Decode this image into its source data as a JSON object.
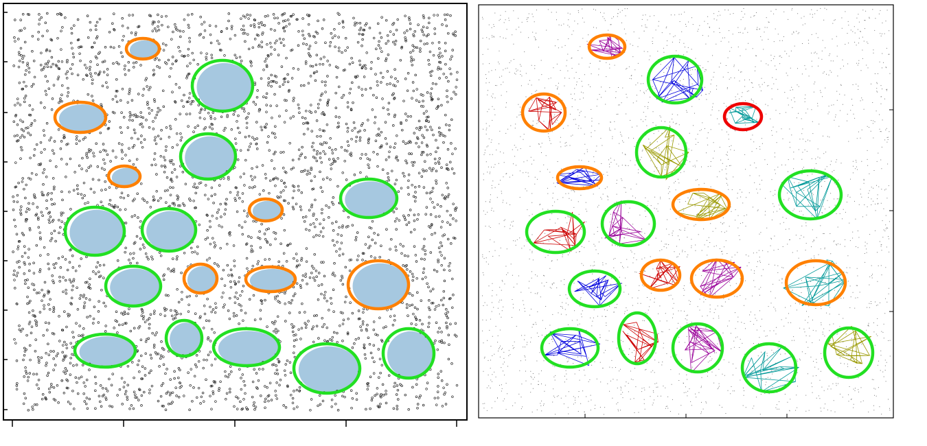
{
  "chart_data": [
    {
      "type": "ellipse-map",
      "xlim": [
        0,
        675
      ],
      "ylim": [
        607,
        0
      ],
      "xticks": [
        13,
        175,
        337,
        499,
        660
      ],
      "yticks": [
        15,
        88,
        160,
        232,
        304,
        376,
        448,
        522,
        594
      ],
      "ellipses": [
        {
          "x": 148,
          "y": 101,
          "rx": 44,
          "ry": 24,
          "color": "#22e022"
        },
        {
          "x": 263,
          "y": 119,
          "rx": 26,
          "ry": 26,
          "color": "#22e022"
        },
        {
          "x": 354,
          "y": 106,
          "rx": 48,
          "ry": 27,
          "color": "#22e022"
        },
        {
          "x": 471,
          "y": 75,
          "rx": 48,
          "ry": 36,
          "color": "#22e022"
        },
        {
          "x": 590,
          "y": 97,
          "rx": 37,
          "ry": 36,
          "color": "#22e022"
        },
        {
          "x": 189,
          "y": 195,
          "rx": 40,
          "ry": 29,
          "color": "#22e022"
        },
        {
          "x": 133,
          "y": 275,
          "rx": 43,
          "ry": 35,
          "color": "#22e022"
        },
        {
          "x": 241,
          "y": 277,
          "rx": 39,
          "ry": 31,
          "color": "#22e022"
        },
        {
          "x": 532,
          "y": 323,
          "rx": 41,
          "ry": 28,
          "color": "#22e022"
        },
        {
          "x": 298,
          "y": 384,
          "rx": 40,
          "ry": 33,
          "color": "#22e022"
        },
        {
          "x": 319,
          "y": 487,
          "rx": 44,
          "ry": 37,
          "color": "#22e022"
        },
        {
          "x": 287,
          "y": 206,
          "rx": 24,
          "ry": 21,
          "color": "#ff8000"
        },
        {
          "x": 389,
          "y": 205,
          "rx": 36,
          "ry": 18,
          "color": "#ff8000"
        },
        {
          "x": 546,
          "y": 197,
          "rx": 44,
          "ry": 35,
          "color": "#ff8000"
        },
        {
          "x": 382,
          "y": 306,
          "rx": 24,
          "ry": 16,
          "color": "#ff8000"
        },
        {
          "x": 176,
          "y": 355,
          "rx": 23,
          "ry": 15,
          "color": "#ff8000"
        },
        {
          "x": 112,
          "y": 441,
          "rx": 37,
          "ry": 22,
          "color": "#ff8000"
        },
        {
          "x": 203,
          "y": 541,
          "rx": 24,
          "ry": 15,
          "color": "#ff8000"
        }
      ]
    },
    {
      "type": "ellipse-mesh",
      "xlim": [
        0,
        604
      ],
      "ylim": [
        602,
        0
      ],
      "xticks": [
        155,
        302,
        449
      ],
      "yticks": [
        155,
        302,
        449
      ],
      "ellipses": [
        {
          "x": 133,
          "y": 102,
          "rx": 41,
          "ry": 28,
          "color": "#22e022"
        },
        {
          "x": 231,
          "y": 116,
          "rx": 27,
          "ry": 37,
          "color": "#22e022"
        },
        {
          "x": 319,
          "y": 102,
          "rx": 36,
          "ry": 35,
          "color": "#22e022"
        },
        {
          "x": 423,
          "y": 73,
          "rx": 39,
          "ry": 35,
          "color": "#22e022"
        },
        {
          "x": 539,
          "y": 95,
          "rx": 35,
          "ry": 36,
          "color": "#22e022"
        },
        {
          "x": 169,
          "y": 188,
          "rx": 37,
          "ry": 26,
          "color": "#22e022"
        },
        {
          "x": 112,
          "y": 271,
          "rx": 42,
          "ry": 30,
          "color": "#22e022"
        },
        {
          "x": 218,
          "y": 283,
          "rx": 38,
          "ry": 32,
          "color": "#22e022"
        },
        {
          "x": 483,
          "y": 325,
          "rx": 45,
          "ry": 35,
          "color": "#22e022"
        },
        {
          "x": 266,
          "y": 387,
          "rx": 36,
          "ry": 36,
          "color": "#22e022"
        },
        {
          "x": 286,
          "y": 493,
          "rx": 39,
          "ry": 34,
          "color": "#22e022"
        },
        {
          "x": 265,
          "y": 208,
          "rx": 28,
          "ry": 22,
          "color": "#ff8000"
        },
        {
          "x": 347,
          "y": 203,
          "rx": 37,
          "ry": 27,
          "color": "#ff8000"
        },
        {
          "x": 491,
          "y": 197,
          "rx": 43,
          "ry": 32,
          "color": "#ff8000"
        },
        {
          "x": 324,
          "y": 311,
          "rx": 41,
          "ry": 22,
          "color": "#ff8000"
        },
        {
          "x": 147,
          "y": 350,
          "rx": 32,
          "ry": 16,
          "color": "#ff8000"
        },
        {
          "x": 95,
          "y": 445,
          "rx": 31,
          "ry": 27,
          "color": "#ff8000"
        },
        {
          "x": 187,
          "y": 541,
          "rx": 26,
          "ry": 17,
          "color": "#ff8000"
        },
        {
          "x": 385,
          "y": 439,
          "rx": 27,
          "ry": 19,
          "color": "#ee0000"
        }
      ]
    }
  ]
}
